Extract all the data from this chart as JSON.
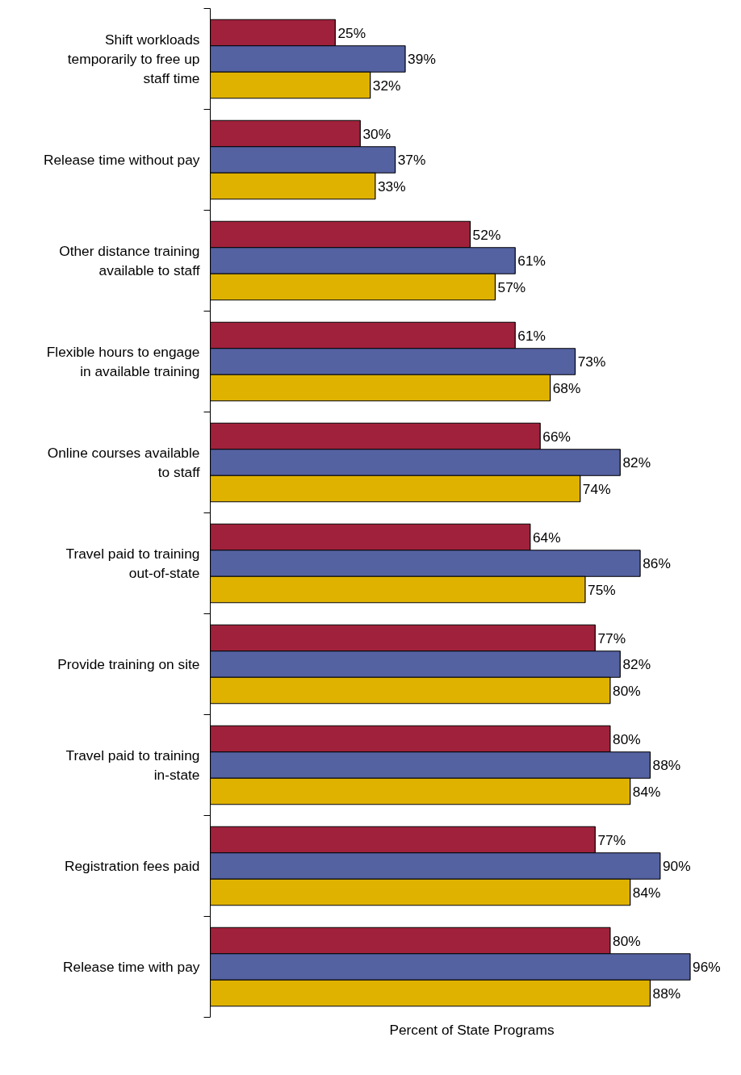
{
  "chart_data": {
    "type": "bar",
    "orientation": "horizontal",
    "xlabel": "Percent of State Programs",
    "categories": [
      "Shift workloads temporarily to free up staff time",
      "Release time without pay",
      "Other distance training available to staff",
      "Flexible hours to engage in available training",
      "Online courses available to staff",
      "Travel paid to training out-of-state",
      "Provide training on site",
      "Travel paid to training in-state",
      "Registration fees paid",
      "Release time with pay"
    ],
    "series": [
      {
        "color": "#a0213b",
        "values": [
          25,
          30,
          52,
          61,
          66,
          64,
          77,
          80,
          77,
          80
        ],
        "value_labels": [
          "25%",
          "30%",
          "52%",
          "61%",
          "66%",
          "64%",
          "77%",
          "80%",
          "77%",
          "80%"
        ]
      },
      {
        "color": "#5462a2",
        "values": [
          39,
          37,
          61,
          73,
          82,
          86,
          82,
          88,
          90,
          96
        ],
        "value_labels": [
          "39%",
          "37%",
          "61%",
          "73%",
          "82%",
          "86%",
          "82%",
          "88%",
          "90%",
          "96%"
        ]
      },
      {
        "color": "#dfb200",
        "values": [
          32,
          33,
          57,
          68,
          74,
          75,
          80,
          84,
          84,
          88
        ],
        "value_labels": [
          "32%",
          "33%",
          "57%",
          "68%",
          "74%",
          "75%",
          "80%",
          "84%",
          "84%",
          "88%"
        ]
      }
    ],
    "tick_labels": "y",
    "grid": false
  }
}
